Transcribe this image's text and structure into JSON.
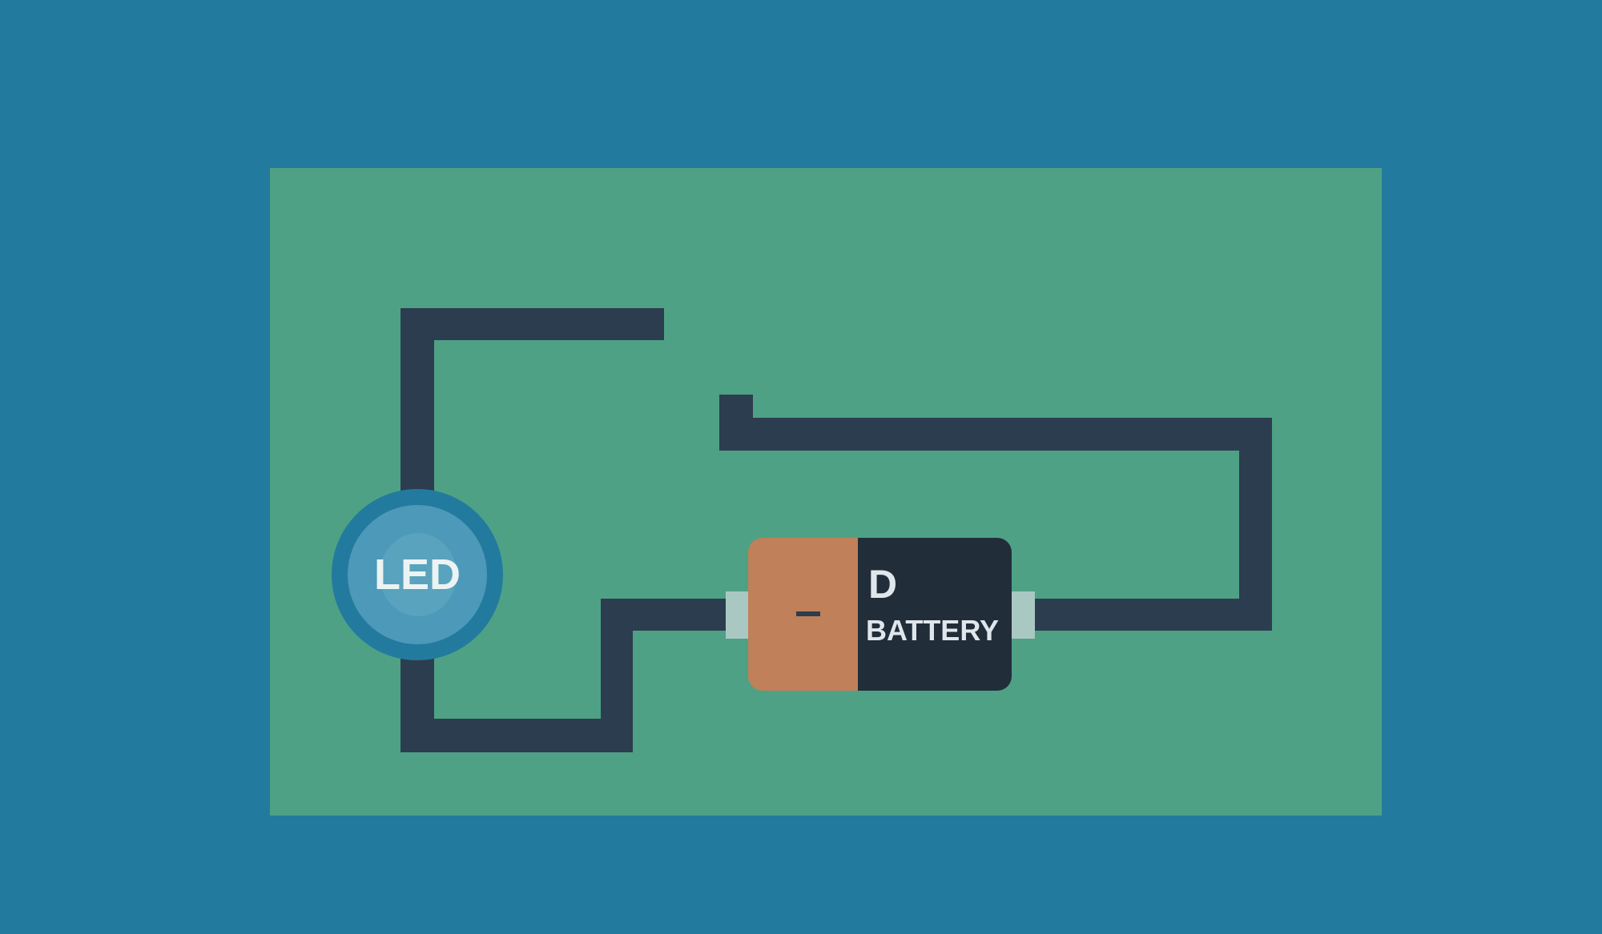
{
  "led": {
    "label": "LED"
  },
  "battery": {
    "negative_symbol": "–",
    "size_label": "D",
    "type_label": "BATTERY"
  },
  "colors": {
    "background": "#227b9e",
    "board": "#4ea185",
    "wire": "#2c3d4f",
    "led_ring": "#227b9e",
    "led_body": "#4d99b9",
    "battery_negative_end": "#c08059",
    "battery_body": "#222d3a",
    "battery_terminal": "#a9c8c2",
    "label_text": "#ecf3f3"
  }
}
